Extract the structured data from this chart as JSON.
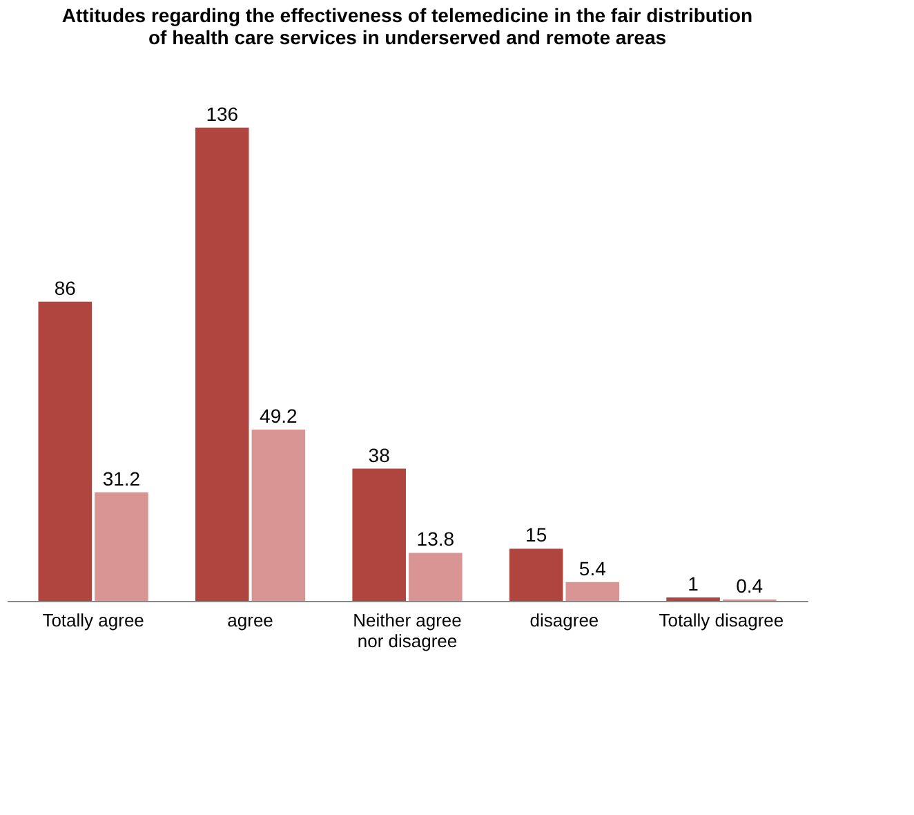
{
  "chart_data": {
    "type": "bar",
    "title": "Attitudes regarding the effectiveness of telemedicine in the fair distribution of health care services in underserved and remote areas",
    "categories": [
      "Totally agree",
      "agree",
      "Neither agree nor disagree",
      "disagree",
      "Totally disagree"
    ],
    "series": [
      {
        "color": "#b0443f",
        "values": [
          86,
          136,
          38,
          15,
          1
        ]
      },
      {
        "color": "#d99594",
        "values": [
          31.2,
          49.2,
          13.8,
          5.4,
          0.4
        ]
      }
    ],
    "data_labels": true,
    "grid": false,
    "legend": false
  }
}
